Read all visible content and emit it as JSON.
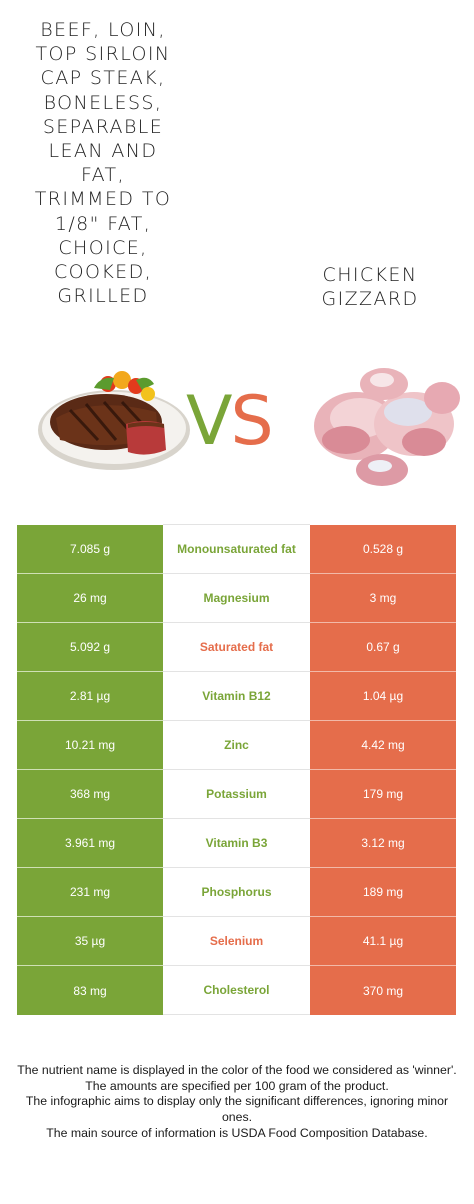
{
  "foods": {
    "left": {
      "title": "Beef, loin, top sirloin cap steak, boneless, separable lean and fat, trimmed to 1/8\" fat, choice, cooked, grilled",
      "image_icon": "grilled-steak-illustration",
      "color": "#7aa538"
    },
    "right": {
      "title": "Chicken gizzard",
      "image_icon": "chicken-gizzard-illustration",
      "color": "#e56d4b"
    },
    "vs": {
      "v": "V",
      "s": "S"
    }
  },
  "nutrients": [
    {
      "name": "Monounsaturated fat",
      "left": "7.085 g",
      "right": "0.528 g",
      "winner": "left"
    },
    {
      "name": "Magnesium",
      "left": "26 mg",
      "right": "3 mg",
      "winner": "left"
    },
    {
      "name": "Saturated fat",
      "left": "5.092 g",
      "right": "0.67 g",
      "winner": "right"
    },
    {
      "name": "Vitamin B12",
      "left": "2.81 µg",
      "right": "1.04 µg",
      "winner": "left"
    },
    {
      "name": "Zinc",
      "left": "10.21 mg",
      "right": "4.42 mg",
      "winner": "left"
    },
    {
      "name": "Potassium",
      "left": "368 mg",
      "right": "179 mg",
      "winner": "left"
    },
    {
      "name": "Vitamin B3",
      "left": "3.961 mg",
      "right": "3.12 mg",
      "winner": "left"
    },
    {
      "name": "Phosphorus",
      "left": "231 mg",
      "right": "189 mg",
      "winner": "left"
    },
    {
      "name": "Selenium",
      "left": "35 µg",
      "right": "41.1 µg",
      "winner": "right"
    },
    {
      "name": "Cholesterol",
      "left": "83 mg",
      "right": "370 mg",
      "winner": "left"
    }
  ],
  "footnotes": [
    "The nutrient name is displayed in the color of the food we considered as 'winner'.",
    "The amounts are specified per 100 gram of the product.",
    "The infographic aims to display only the significant differences, ignoring minor ones.",
    "The main source of information is USDA Food Composition Database."
  ]
}
